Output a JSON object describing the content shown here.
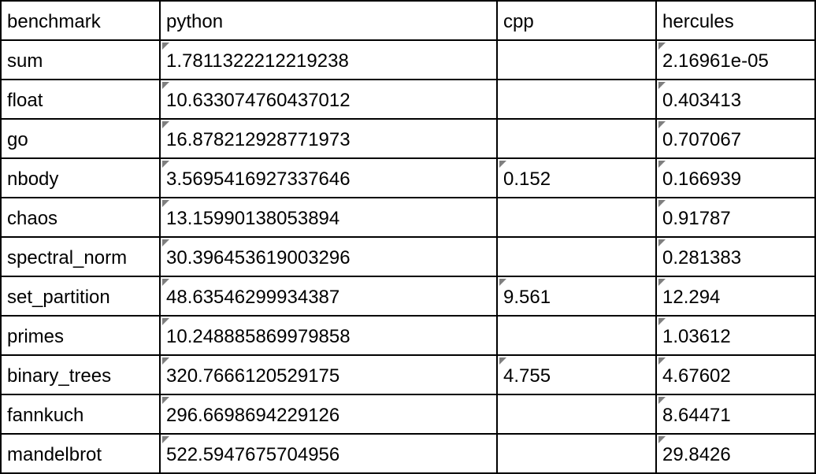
{
  "chart_data": {
    "type": "table",
    "columns": [
      "benchmark",
      "python",
      "cpp",
      "hercules"
    ],
    "rows": [
      {
        "benchmark": "sum",
        "python": "1.7811322212219238",
        "cpp": "",
        "hercules": "2.16961e-05"
      },
      {
        "benchmark": "float",
        "python": "10.633074760437012",
        "cpp": "",
        "hercules": "0.403413"
      },
      {
        "benchmark": "go",
        "python": "16.878212928771973",
        "cpp": "",
        "hercules": "0.707067"
      },
      {
        "benchmark": "nbody",
        "python": "3.5695416927337646",
        "cpp": "0.152",
        "hercules": "0.166939"
      },
      {
        "benchmark": "chaos",
        "python": "13.15990138053894",
        "cpp": "",
        "hercules": "0.91787"
      },
      {
        "benchmark": "spectral_norm",
        "python": "30.396453619003296",
        "cpp": "",
        "hercules": "0.281383"
      },
      {
        "benchmark": "set_partition",
        "python": "48.63546299934387",
        "cpp": "9.561",
        "hercules": "12.294"
      },
      {
        "benchmark": "primes",
        "python": "10.248885869979858",
        "cpp": "",
        "hercules": "1.03612"
      },
      {
        "benchmark": "binary_trees",
        "python": "320.7666120529175",
        "cpp": "4.755",
        "hercules": "4.67602"
      },
      {
        "benchmark": "fannkuch",
        "python": "296.6698694229126",
        "cpp": "",
        "hercules": "8.64471"
      },
      {
        "benchmark": "mandelbrot",
        "python": "522.5947675704956",
        "cpp": "",
        "hercules": "29.8426"
      }
    ]
  },
  "colors": {
    "grid_line": "#000000",
    "cell_marker": "#7f7f7f",
    "background": "#ffffff",
    "text": "#000000"
  }
}
